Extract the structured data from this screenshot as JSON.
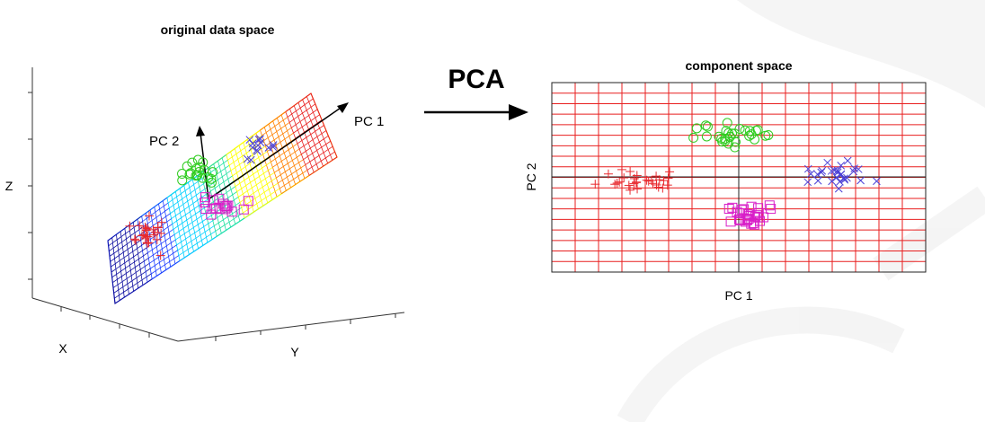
{
  "left_panel": {
    "title": "original data space",
    "axis_x": "X",
    "axis_y": "Y",
    "axis_z": "Z",
    "pc1_label": "PC 1",
    "pc2_label": "PC 2"
  },
  "arrow_label": "PCA",
  "right_panel": {
    "title": "component space",
    "xlabel": "PC 1",
    "ylabel": "PC 2"
  },
  "colors": {
    "red_cluster": "#e8282d",
    "green_cluster": "#2fcc1f",
    "blue_cluster": "#4b3fd6",
    "magenta_cluster": "#d81ec8",
    "grid": "#e81e1e",
    "plane_palette": [
      "#1010a0",
      "#2040ff",
      "#00d0ff",
      "#20e0a0",
      "#ffff00",
      "#ff8000",
      "#e82020"
    ]
  },
  "legend_markers": {
    "red": "plus",
    "green": "circle",
    "blue": "cross",
    "magenta": "square"
  }
}
